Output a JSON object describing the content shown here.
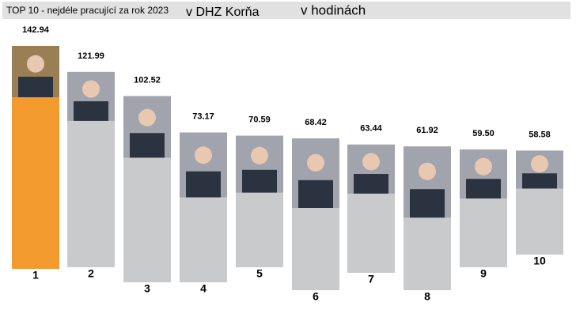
{
  "chart_data": {
    "type": "bar",
    "title": "TOP 10 - nejdéle pracující za rok 2023",
    "subtitle": "v DHZ Korňa",
    "annotation": "v hodinách",
    "categories": [
      "1",
      "2",
      "3",
      "4",
      "5",
      "6",
      "7",
      "8",
      "9",
      "10"
    ],
    "values": [
      142.94,
      121.99,
      102.52,
      73.17,
      70.59,
      68.42,
      63.44,
      61.92,
      59.5,
      58.58
    ],
    "value_labels": [
      "142.94",
      "121.99",
      "102.52",
      "73.17",
      "70.59",
      "68.42",
      "63.44",
      "61.92",
      "59.50",
      "58.58"
    ],
    "colors": [
      "#f39a2e",
      "#c9cacc",
      "#c9cacc",
      "#c9cacc",
      "#c9cacc",
      "#c9cacc",
      "#c9cacc",
      "#c9cacc",
      "#c9cacc",
      "#c9cacc"
    ]
  }
}
